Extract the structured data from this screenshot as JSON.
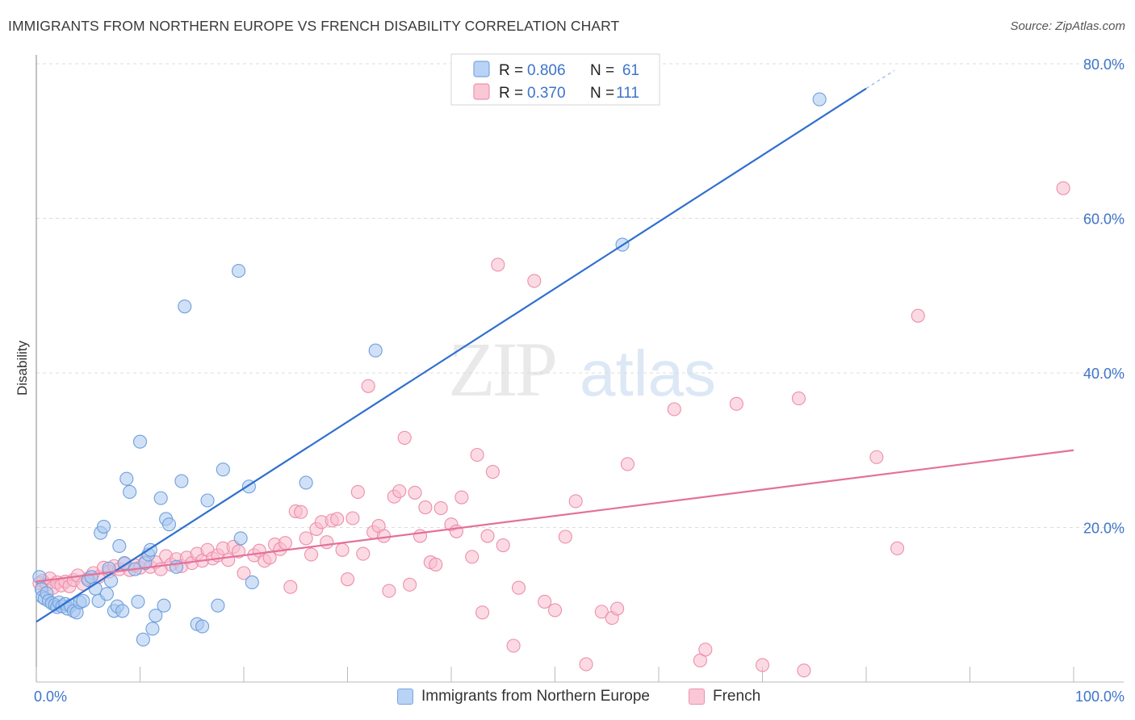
{
  "header": {
    "title": "IMMIGRANTS FROM NORTHERN EUROPE VS FRENCH DISABILITY CORRELATION CHART",
    "source": "Source: ZipAtlas.com"
  },
  "watermark": {
    "zip": "ZIP",
    "atlas": "atlas"
  },
  "colors": {
    "blue_fill": "#a9c8f0",
    "blue_stroke": "#6f9fdc",
    "blue_line": "#2f6fcf",
    "pink_fill": "#f9bccd",
    "pink_stroke": "#ec8fab",
    "pink_line": "#e3719a",
    "tick_text": "#3d74c9"
  },
  "legend": {
    "r_label": "R =",
    "n_label": "N =",
    "series": [
      {
        "name": "Immigrants from Northern Europe",
        "r": "0.806",
        "n": "61"
      },
      {
        "name": "French",
        "r": "0.370",
        "n": "111"
      }
    ]
  },
  "chart_data": {
    "type": "scatter",
    "title": "IMMIGRANTS FROM NORTHERN EUROPE VS FRENCH DISABILITY CORRELATION CHART",
    "xlabel": "",
    "ylabel": "Disability",
    "xlim": [
      0,
      100
    ],
    "ylim": [
      0,
      80
    ],
    "x_tick_labels": [
      "0.0%",
      "100.0%"
    ],
    "y_ticks": [
      20,
      40,
      60,
      80
    ],
    "y_tick_labels": [
      "20.0%",
      "40.0%",
      "60.0%",
      "80.0%"
    ],
    "grid": true,
    "series": [
      {
        "name": "Immigrants from Northern Europe",
        "trend": {
          "x": [
            0,
            80
          ],
          "y": [
            7.8,
            76.8
          ]
        },
        "points": [
          [
            0.3,
            13.6
          ],
          [
            0.5,
            12.0
          ],
          [
            0.6,
            11.0
          ],
          [
            0.8,
            10.8
          ],
          [
            1.0,
            11.5
          ],
          [
            1.2,
            10.5
          ],
          [
            1.5,
            10.2
          ],
          [
            1.8,
            10.0
          ],
          [
            2.0,
            9.7
          ],
          [
            2.2,
            10.3
          ],
          [
            2.5,
            9.8
          ],
          [
            2.8,
            10.1
          ],
          [
            3.0,
            9.5
          ],
          [
            3.3,
            9.9
          ],
          [
            3.6,
            9.2
          ],
          [
            3.9,
            9.0
          ],
          [
            4.2,
            10.3
          ],
          [
            4.5,
            10.5
          ],
          [
            5.0,
            13.2
          ],
          [
            5.3,
            13.6
          ],
          [
            5.7,
            12.1
          ],
          [
            6.0,
            10.5
          ],
          [
            6.2,
            19.3
          ],
          [
            6.5,
            20.1
          ],
          [
            6.8,
            11.4
          ],
          [
            7.0,
            14.7
          ],
          [
            7.2,
            13.1
          ],
          [
            7.5,
            9.2
          ],
          [
            7.8,
            9.8
          ],
          [
            8.0,
            17.6
          ],
          [
            8.3,
            9.2
          ],
          [
            8.5,
            15.4
          ],
          [
            8.7,
            26.3
          ],
          [
            9.0,
            24.6
          ],
          [
            9.5,
            14.6
          ],
          [
            9.8,
            10.4
          ],
          [
            10.0,
            31.1
          ],
          [
            10.3,
            5.5
          ],
          [
            10.5,
            15.4
          ],
          [
            10.8,
            16.5
          ],
          [
            11.0,
            17.1
          ],
          [
            11.2,
            6.9
          ],
          [
            11.5,
            8.6
          ],
          [
            12.0,
            23.8
          ],
          [
            12.3,
            9.9
          ],
          [
            12.5,
            21.1
          ],
          [
            12.8,
            20.4
          ],
          [
            13.5,
            14.9
          ],
          [
            14.0,
            26.0
          ],
          [
            14.3,
            48.6
          ],
          [
            15.5,
            7.5
          ],
          [
            16.0,
            7.2
          ],
          [
            16.5,
            23.5
          ],
          [
            17.5,
            9.9
          ],
          [
            18.0,
            27.5
          ],
          [
            19.5,
            53.2
          ],
          [
            19.7,
            18.6
          ],
          [
            20.5,
            25.3
          ],
          [
            20.8,
            12.9
          ],
          [
            26.0,
            25.8
          ],
          [
            32.7,
            42.9
          ],
          [
            56.5,
            56.6
          ],
          [
            75.5,
            75.4
          ]
        ]
      },
      {
        "name": "French",
        "trend": {
          "x": [
            0,
            100
          ],
          "y": [
            13.0,
            30.0
          ]
        },
        "points": [
          [
            0.3,
            12.8
          ],
          [
            0.6,
            13.1
          ],
          [
            1.0,
            12.6
          ],
          [
            1.3,
            13.4
          ],
          [
            1.6,
            12.2
          ],
          [
            2.0,
            12.9
          ],
          [
            2.4,
            12.5
          ],
          [
            2.8,
            13.0
          ],
          [
            3.2,
            12.4
          ],
          [
            3.6,
            13.2
          ],
          [
            4.0,
            13.8
          ],
          [
            4.5,
            12.7
          ],
          [
            5.0,
            13.4
          ],
          [
            5.5,
            14.1
          ],
          [
            6.0,
            13.6
          ],
          [
            6.5,
            14.8
          ],
          [
            7.0,
            14.3
          ],
          [
            7.5,
            15.0
          ],
          [
            8.0,
            14.6
          ],
          [
            8.5,
            15.3
          ],
          [
            9.0,
            14.5
          ],
          [
            9.5,
            15.1
          ],
          [
            10.0,
            14.8
          ],
          [
            10.5,
            15.6
          ],
          [
            11.0,
            14.9
          ],
          [
            11.5,
            15.5
          ],
          [
            12.0,
            14.6
          ],
          [
            12.5,
            16.3
          ],
          [
            13.0,
            15.2
          ],
          [
            13.5,
            15.9
          ],
          [
            14.0,
            15.0
          ],
          [
            14.5,
            16.1
          ],
          [
            15.0,
            15.4
          ],
          [
            15.5,
            16.6
          ],
          [
            16.0,
            15.7
          ],
          [
            16.5,
            17.1
          ],
          [
            17.0,
            16.0
          ],
          [
            17.5,
            16.4
          ],
          [
            18.0,
            17.3
          ],
          [
            18.5,
            15.8
          ],
          [
            19.0,
            17.5
          ],
          [
            19.5,
            16.9
          ],
          [
            20.0,
            14.1
          ],
          [
            21.0,
            16.4
          ],
          [
            21.5,
            17.0
          ],
          [
            22.0,
            15.7
          ],
          [
            22.5,
            16.1
          ],
          [
            23.0,
            17.8
          ],
          [
            23.5,
            17.2
          ],
          [
            24.0,
            18.0
          ],
          [
            24.5,
            12.3
          ],
          [
            25.0,
            22.1
          ],
          [
            25.5,
            22.0
          ],
          [
            26.0,
            18.6
          ],
          [
            26.5,
            16.5
          ],
          [
            27.0,
            19.8
          ],
          [
            27.5,
            20.7
          ],
          [
            28.0,
            18.1
          ],
          [
            28.5,
            20.9
          ],
          [
            29.0,
            21.1
          ],
          [
            29.5,
            17.1
          ],
          [
            30.0,
            13.3
          ],
          [
            30.5,
            21.2
          ],
          [
            31.0,
            24.6
          ],
          [
            31.5,
            16.6
          ],
          [
            32.0,
            38.3
          ],
          [
            32.5,
            19.4
          ],
          [
            33.0,
            20.2
          ],
          [
            33.5,
            18.9
          ],
          [
            34.0,
            11.8
          ],
          [
            34.5,
            24.0
          ],
          [
            35.0,
            24.7
          ],
          [
            35.5,
            31.6
          ],
          [
            36.0,
            12.6
          ],
          [
            36.5,
            24.5
          ],
          [
            37.0,
            18.9
          ],
          [
            37.5,
            22.6
          ],
          [
            38.0,
            15.5
          ],
          [
            38.5,
            15.2
          ],
          [
            39.0,
            22.5
          ],
          [
            40.0,
            20.4
          ],
          [
            40.5,
            19.5
          ],
          [
            41.0,
            23.9
          ],
          [
            42.0,
            16.2
          ],
          [
            42.5,
            29.4
          ],
          [
            43.0,
            9.0
          ],
          [
            43.5,
            18.9
          ],
          [
            44.0,
            27.2
          ],
          [
            44.5,
            54.0
          ],
          [
            45.0,
            17.7
          ],
          [
            46.0,
            4.7
          ],
          [
            46.5,
            12.2
          ],
          [
            48.0,
            51.9
          ],
          [
            49.0,
            10.4
          ],
          [
            50.0,
            9.3
          ],
          [
            51.0,
            18.8
          ],
          [
            52.0,
            23.4
          ],
          [
            53.0,
            2.3
          ],
          [
            54.5,
            9.1
          ],
          [
            55.5,
            8.3
          ],
          [
            56.0,
            9.5
          ],
          [
            57.0,
            28.2
          ],
          [
            61.5,
            35.3
          ],
          [
            64.0,
            2.8
          ],
          [
            64.5,
            4.2
          ],
          [
            67.5,
            36.0
          ],
          [
            70.0,
            2.2
          ],
          [
            73.5,
            36.7
          ],
          [
            74.0,
            1.5
          ],
          [
            81.0,
            29.1
          ],
          [
            83.0,
            17.3
          ],
          [
            85.0,
            47.4
          ],
          [
            99.0,
            63.9
          ]
        ]
      }
    ]
  }
}
